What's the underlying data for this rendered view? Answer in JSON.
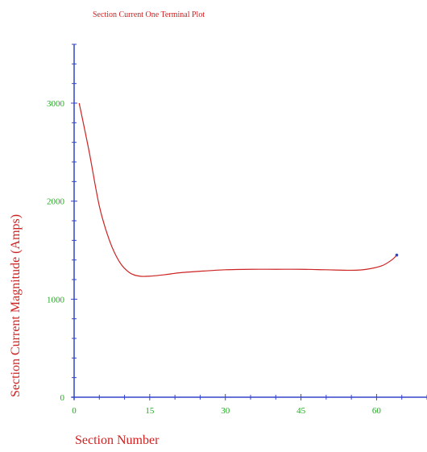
{
  "chart_data": {
    "type": "line",
    "title": "Section Current One Terminal Plot",
    "xlabel": "Section Number",
    "ylabel": "Section Current Magnitude (Amps)",
    "xlim": [
      0,
      70
    ],
    "ylim": [
      0,
      3600
    ],
    "x_ticks": [
      0,
      15,
      30,
      45,
      60
    ],
    "x_tick_labels": [
      "0",
      "15",
      "30",
      "45",
      "60"
    ],
    "y_ticks": [
      0,
      1000,
      2000,
      3000
    ],
    "y_tick_labels": [
      "0",
      "1000",
      "2000",
      "3000"
    ],
    "grid": false,
    "series": [
      {
        "name": "",
        "color": "#cc2222",
        "marker_color": "#3344cc",
        "x": [
          1,
          3,
          5,
          7,
          9,
          11,
          13,
          15,
          18,
          21,
          25,
          30,
          35,
          40,
          45,
          50,
          55,
          58,
          61,
          63,
          64
        ],
        "y": [
          3000,
          2500,
          1950,
          1600,
          1380,
          1270,
          1235,
          1235,
          1250,
          1270,
          1285,
          1300,
          1305,
          1305,
          1305,
          1300,
          1295,
          1305,
          1340,
          1400,
          1450
        ]
      }
    ],
    "axis_color": "#3344cc",
    "title_color": "#cc2222",
    "tick_label_color": "#22aa22"
  }
}
